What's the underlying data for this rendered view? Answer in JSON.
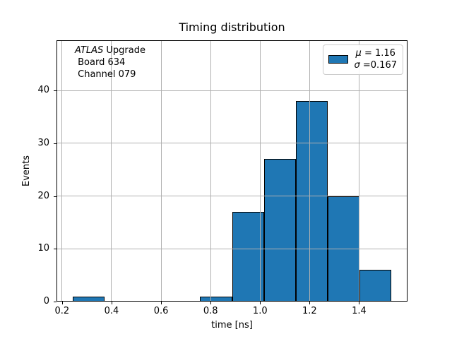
{
  "chart_data": {
    "type": "histogram",
    "title": "Timing distribution",
    "xlabel": "time [ns]",
    "ylabel": "Events",
    "bin_edges": [
      0.2425,
      0.3713,
      0.5002,
      0.629,
      0.7579,
      0.8867,
      1.0156,
      1.1444,
      1.2733,
      1.4021,
      1.531
    ],
    "counts": [
      1,
      0,
      0,
      0,
      1,
      17,
      27,
      38,
      20,
      6
    ],
    "xlim": [
      0.1775,
      1.5955
    ],
    "ylim": [
      0,
      49.5
    ],
    "xticks": [
      0.2,
      0.4,
      0.6,
      0.8,
      1.0,
      1.2,
      1.4
    ],
    "xtick_labels": [
      "0.2",
      "0.4",
      "0.6",
      "0.8",
      "1.0",
      "1.2",
      "1.4"
    ],
    "yticks": [
      0,
      10,
      20,
      30,
      40
    ],
    "ytick_labels": [
      "0",
      "10",
      "20",
      "30",
      "40"
    ],
    "grid": true,
    "grid_above_bars": true,
    "legend_position": "upper right",
    "colors": {
      "bar_fill": "#1f77b4",
      "bar_edge": "#000000",
      "grid": "#b0b0b0",
      "spine": "#000000",
      "legend_border": "#cccccc"
    },
    "stats": {
      "mu": "1.16",
      "sigma": "0.167"
    },
    "legend": {
      "entries": [
        {
          "symbol": "μ",
          "text": " = 1.16"
        },
        {
          "symbol": "σ",
          "text": " =0.167"
        }
      ]
    },
    "annotation": {
      "line1_italic": "ATLAS",
      "line1_rest": " Upgrade",
      "line2": " Board 634",
      "line3": " Channel 079"
    }
  }
}
